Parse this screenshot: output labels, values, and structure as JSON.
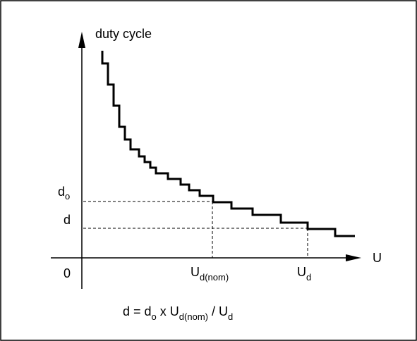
{
  "y_axis_label": "duty cycle",
  "x_axis_label": "U",
  "origin_label": "0",
  "y_labels": [
    {
      "base": "d",
      "sub": "o"
    },
    {
      "base": "d"
    }
  ],
  "x_labels": [
    {
      "base": "U",
      "sub": "d(nom)"
    },
    {
      "base": "U",
      "sub": "d"
    }
  ],
  "formula": [
    {
      "base": "d = d",
      "sub": "o"
    },
    {
      "base": " x U",
      "sub": "d(nom)"
    },
    {
      "base": " / U",
      "sub": "d"
    }
  ]
}
